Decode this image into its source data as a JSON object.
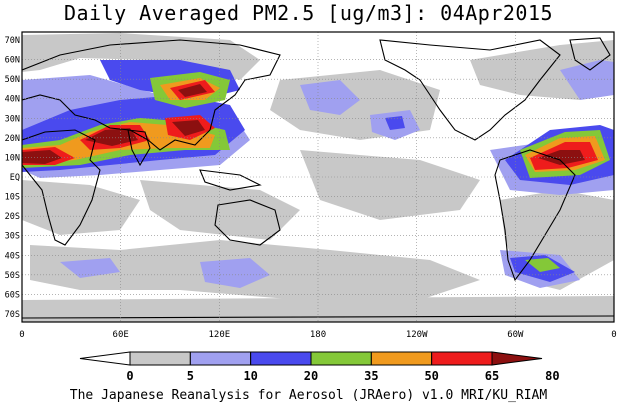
{
  "title": "Daily Averaged PM2.5 [ug/m3]: 04Apr2015",
  "footer": "The Japanese Reanalysis for Aerosol (JRAero) v1.0 MRI/KU_RIAM",
  "lat_labels": [
    "70N",
    "60N",
    "50N",
    "40N",
    "30N",
    "20N",
    "10N",
    "EQ",
    "10S",
    "20S",
    "30S",
    "40S",
    "50S",
    "60S",
    "70S"
  ],
  "lon_labels": [
    "0",
    "60E",
    "120E",
    "180",
    "120W",
    "60W",
    "0"
  ],
  "colorbar": {
    "ticks": [
      "0",
      "5",
      "10",
      "20",
      "35",
      "50",
      "65",
      "80"
    ],
    "colors": [
      "#ffffff",
      "#c8c8c8",
      "#a0a0f0",
      "#4a4aee",
      "#84c838",
      "#f09a1e",
      "#ee1c1c",
      "#8c1010"
    ]
  },
  "field_colors": {
    "low": "#c8c8c8",
    "mid": "#a0a0f0",
    "blue": "#4a4aee",
    "green": "#84c838",
    "orange": "#f09a1e",
    "red": "#ee1c1c",
    "maroon": "#8c1010"
  }
}
